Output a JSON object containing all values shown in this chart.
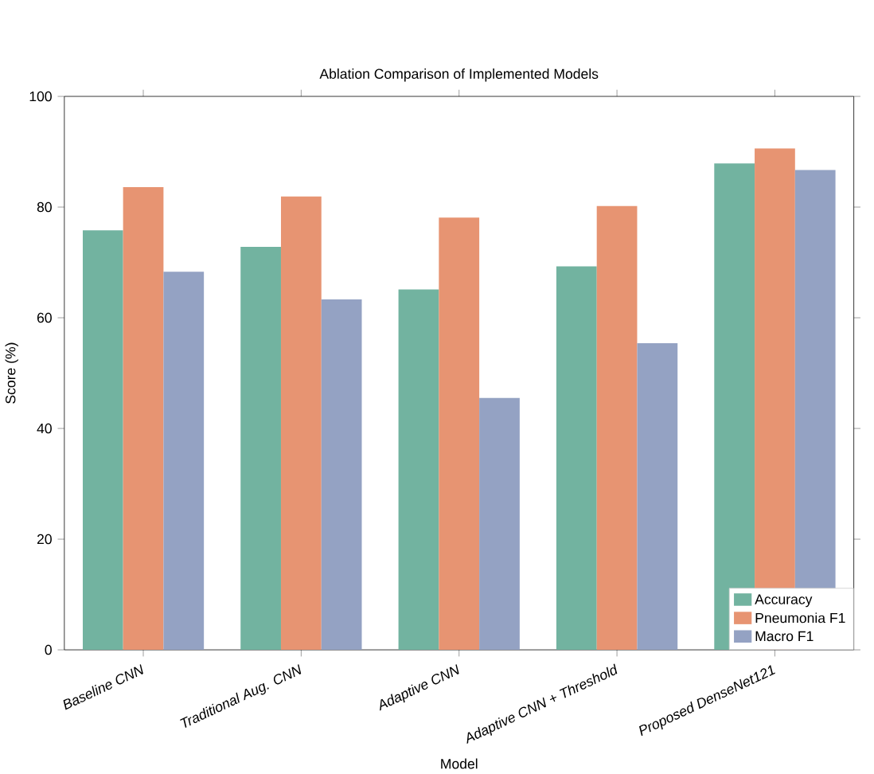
{
  "chart_data": {
    "type": "bar",
    "title": "Ablation Comparison of Implemented Models",
    "xlabel": "Model",
    "ylabel": "Score (%)",
    "categories": [
      "Baseline CNN",
      "Traditional Aug. CNN",
      "Adaptive CNN",
      "Adaptive CNN + Threshold",
      "Proposed DenseNet121"
    ],
    "series": [
      {
        "name": "Accuracy",
        "color": "#72b3a0",
        "values": [
          75.8,
          72.8,
          65.1,
          69.3,
          87.9
        ]
      },
      {
        "name": "Pneumonia F1",
        "color": "#e79472",
        "values": [
          83.6,
          81.9,
          78.1,
          80.2,
          90.6
        ]
      },
      {
        "name": "Macro F1",
        "color": "#94a2c3",
        "values": [
          68.3,
          63.3,
          45.5,
          55.4,
          86.7
        ]
      }
    ],
    "ylim": [
      0,
      100
    ],
    "yticks": [
      0,
      20,
      40,
      60,
      80,
      100
    ],
    "grid": false,
    "legend": "bottom right"
  }
}
